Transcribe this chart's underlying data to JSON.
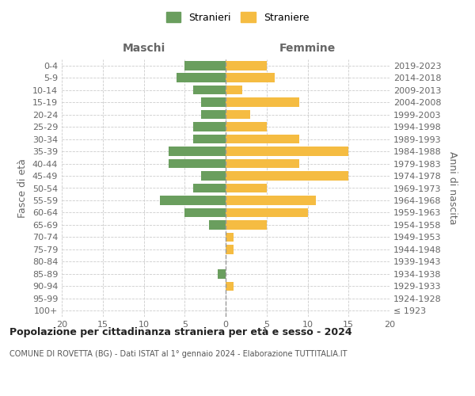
{
  "age_groups": [
    "100+",
    "95-99",
    "90-94",
    "85-89",
    "80-84",
    "75-79",
    "70-74",
    "65-69",
    "60-64",
    "55-59",
    "50-54",
    "45-49",
    "40-44",
    "35-39",
    "30-34",
    "25-29",
    "20-24",
    "15-19",
    "10-14",
    "5-9",
    "0-4"
  ],
  "birth_years": [
    "≤ 1923",
    "1924-1928",
    "1929-1933",
    "1934-1938",
    "1939-1943",
    "1944-1948",
    "1949-1953",
    "1954-1958",
    "1959-1963",
    "1964-1968",
    "1969-1973",
    "1974-1978",
    "1979-1983",
    "1984-1988",
    "1989-1993",
    "1994-1998",
    "1999-2003",
    "2004-2008",
    "2009-2013",
    "2014-2018",
    "2019-2023"
  ],
  "maschi": [
    0,
    0,
    0,
    1,
    0,
    0,
    0,
    2,
    5,
    8,
    4,
    3,
    7,
    7,
    4,
    4,
    3,
    3,
    4,
    6,
    5
  ],
  "femmine": [
    0,
    0,
    1,
    0,
    0,
    1,
    1,
    5,
    10,
    11,
    5,
    15,
    9,
    15,
    9,
    5,
    3,
    9,
    2,
    6,
    5
  ],
  "maschi_color": "#6a9e5e",
  "femmine_color": "#f5bc42",
  "title": "Popolazione per cittadinanza straniera per età e sesso - 2024",
  "subtitle": "COMUNE DI ROVETTA (BG) - Dati ISTAT al 1° gennaio 2024 - Elaborazione TUTTITALIA.IT",
  "legend_maschi": "Stranieri",
  "legend_femmine": "Straniere",
  "header_left": "Maschi",
  "header_right": "Femmine",
  "ylabel_left": "Fasce di età",
  "ylabel_right": "Anni di nascita",
  "xlim": 20,
  "bg_color": "#ffffff",
  "grid_color": "#cccccc",
  "bar_height": 0.75
}
